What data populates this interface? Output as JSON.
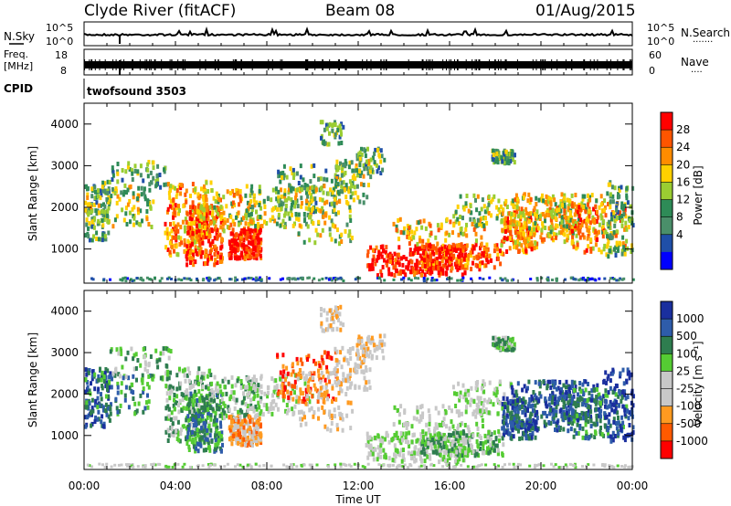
{
  "header": {
    "station": "Clyde River (fitACF)",
    "beam": "Beam 08",
    "date": "01/Aug/2015"
  },
  "panels": {
    "nsky": {
      "left_label": "N.Sky",
      "left_ticks": [
        "10^5",
        "10^0"
      ],
      "right_ticks": [
        "10^5",
        "10^0"
      ],
      "right_label": "N.Search",
      "right_dots": "·······"
    },
    "freq": {
      "left_label_1": "Freq.",
      "left_label_2": "[MHz]",
      "left_ticks": [
        "18",
        "8"
      ],
      "right_ticks": [
        "60",
        "0"
      ],
      "right_label": "Nave",
      "right_dots": "····"
    },
    "cpid": {
      "label": "CPID",
      "value": "twofsound 3503"
    }
  },
  "colors": {
    "power": [
      "#0000ff",
      "#1f4fa8",
      "#4a8f6a",
      "#2e8b57",
      "#9acd32",
      "#ffd000",
      "#ff8c00",
      "#ff5500",
      "#ff0000"
    ],
    "velocity": [
      "#ff0000",
      "#ff5a00",
      "#ff9a20",
      "#c8c8c8",
      "#c8c8c8",
      "#55cc33",
      "#2e7d4f",
      "#2e5caa",
      "#1a2f9e"
    ]
  },
  "chart_data": [
    {
      "type": "heatmap",
      "name": "power",
      "ylabel": "Slant Range [km]",
      "ylim": [
        180,
        4500
      ],
      "yticks": [
        1000,
        2000,
        3000,
        4000
      ],
      "xlim": [
        "00:00",
        "24:00"
      ],
      "colorbar": {
        "label": "Power [dB]",
        "range": [
          0,
          32
        ],
        "ticks": [
          "4",
          "8",
          "12",
          "16",
          "20",
          "24",
          "28"
        ]
      }
    },
    {
      "type": "heatmap",
      "name": "velocity",
      "ylabel": "Slant Range [km]",
      "ylim": [
        180,
        4500
      ],
      "yticks": [
        1000,
        2000,
        3000,
        4000
      ],
      "xlabel": "Time UT",
      "xticks": [
        "00:00",
        "04:00",
        "08:00",
        "12:00",
        "16:00",
        "20:00",
        "00:00"
      ],
      "colorbar": {
        "label": "Velocity [m s⁻¹]",
        "ticks": [
          "1000",
          "500",
          "100",
          "25",
          "-25",
          "-100",
          "-500",
          "-1000"
        ]
      }
    }
  ]
}
